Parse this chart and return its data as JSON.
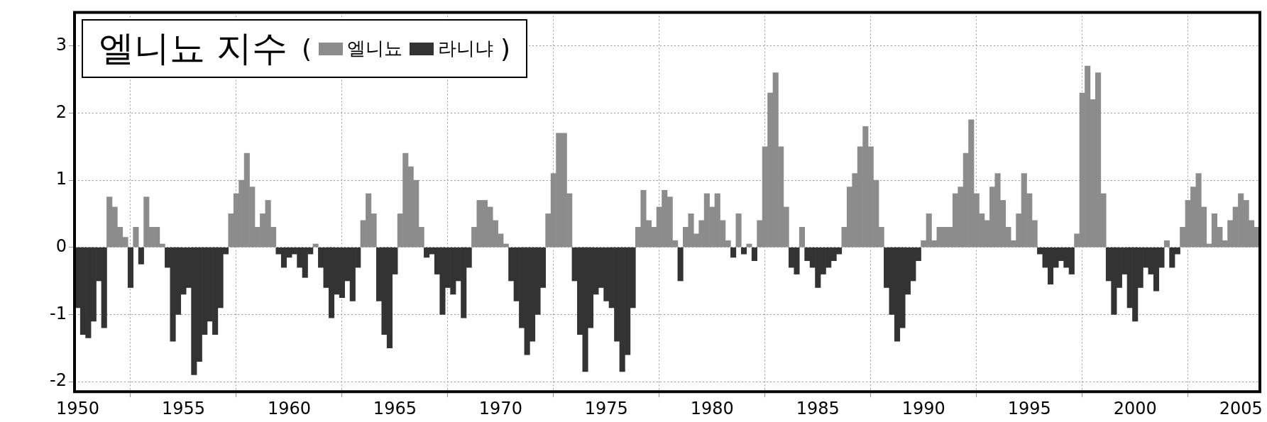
{
  "chart_data": {
    "type": "bar",
    "title": "엘니뇨 지수",
    "legend": "top left",
    "annotations": [
      "(",
      ")"
    ],
    "grid": true,
    "xlim": [
      1949.85,
      2005.9
    ],
    "xticks": [
      1950,
      1955,
      1960,
      1965,
      1970,
      1975,
      1980,
      1985,
      1990,
      1995,
      2000,
      2005
    ],
    "ylim": [
      -2.15,
      3.5
    ],
    "yticks": [
      -2,
      -1,
      0,
      1,
      2,
      3
    ],
    "x": [
      1950,
      1950.25,
      1950.5,
      1950.75,
      1951,
      1951.25,
      1951.5,
      1951.75,
      1952,
      1952.25,
      1952.5,
      1952.75,
      1953,
      1953.25,
      1953.5,
      1953.75,
      1954,
      1954.25,
      1954.5,
      1954.75,
      1955,
      1955.25,
      1955.5,
      1955.75,
      1956,
      1956.25,
      1956.5,
      1956.75,
      1957,
      1957.25,
      1957.5,
      1957.75,
      1958,
      1958.25,
      1958.5,
      1958.75,
      1959,
      1959.25,
      1959.5,
      1959.75,
      1960,
      1960.25,
      1960.5,
      1960.75,
      1961,
      1961.25,
      1961.5,
      1961.75,
      1962,
      1962.25,
      1962.5,
      1962.75,
      1963,
      1963.25,
      1963.5,
      1963.75,
      1964,
      1964.25,
      1964.5,
      1964.75,
      1965,
      1965.25,
      1965.5,
      1965.75,
      1966,
      1966.25,
      1966.5,
      1966.75,
      1967,
      1967.25,
      1967.5,
      1967.75,
      1968,
      1968.25,
      1968.5,
      1968.75,
      1969,
      1969.25,
      1969.5,
      1969.75,
      1970,
      1970.25,
      1970.5,
      1970.75,
      1971,
      1971.25,
      1971.5,
      1971.75,
      1972,
      1972.25,
      1972.5,
      1972.75,
      1973,
      1973.25,
      1973.5,
      1973.75,
      1974,
      1974.25,
      1974.5,
      1974.75,
      1975,
      1975.25,
      1975.5,
      1975.75,
      1976,
      1976.25,
      1976.5,
      1976.75,
      1977,
      1977.25,
      1977.5,
      1977.75,
      1978,
      1978.25,
      1978.5,
      1978.75,
      1979,
      1979.25,
      1979.5,
      1979.75,
      1980,
      1980.25,
      1980.5,
      1980.75,
      1981,
      1981.25,
      1981.5,
      1981.75,
      1982,
      1982.25,
      1982.5,
      1982.75,
      1983,
      1983.25,
      1983.5,
      1983.75,
      1984,
      1984.25,
      1984.5,
      1984.75,
      1985,
      1985.25,
      1985.5,
      1985.75,
      1986,
      1986.25,
      1986.5,
      1986.75,
      1987,
      1987.25,
      1987.5,
      1987.75,
      1988,
      1988.25,
      1988.5,
      1988.75,
      1989,
      1989.25,
      1989.5,
      1989.75,
      1990,
      1990.25,
      1990.5,
      1990.75,
      1991,
      1991.25,
      1991.5,
      1991.75,
      1992,
      1992.25,
      1992.5,
      1992.75,
      1993,
      1993.25,
      1993.5,
      1993.75,
      1994,
      1994.25,
      1994.5,
      1994.75,
      1995,
      1995.25,
      1995.5,
      1995.75,
      1996,
      1996.25,
      1996.5,
      1996.75,
      1997,
      1997.25,
      1997.5,
      1997.75,
      1998,
      1998.25,
      1998.5,
      1998.75,
      1999,
      1999.25,
      1999.5,
      1999.75,
      2000,
      2000.25,
      2000.5,
      2000.75,
      2001,
      2001.25,
      2001.5,
      2001.75,
      2002,
      2002.25,
      2002.5,
      2002.75,
      2003,
      2003.25,
      2003.5,
      2003.75,
      2004,
      2004.25,
      2004.5,
      2004.75,
      2005,
      2005.25,
      2005.5,
      2005.75
    ],
    "series": [
      {
        "name": "엘니뇨",
        "color": "#8c8c8c",
        "values": [
          null,
          null,
          null,
          null,
          null,
          null,
          0.75,
          0.6,
          0.3,
          0.15,
          null,
          0.3,
          null,
          0.75,
          0.3,
          0.3,
          0.05,
          null,
          null,
          null,
          null,
          null,
          null,
          null,
          null,
          null,
          null,
          null,
          null,
          0.5,
          0.8,
          1.0,
          1.4,
          0.9,
          0.3,
          0.5,
          0.7,
          0.3,
          null,
          null,
          null,
          null,
          null,
          null,
          null,
          0.05,
          null,
          null,
          null,
          null,
          null,
          null,
          null,
          null,
          0.4,
          0.8,
          0.5,
          null,
          null,
          null,
          null,
          0.5,
          1.4,
          1.2,
          1.0,
          0.3,
          null,
          null,
          null,
          null,
          null,
          null,
          null,
          null,
          null,
          0.3,
          0.7,
          0.7,
          0.6,
          0.4,
          0.2,
          0.05,
          null,
          null,
          null,
          null,
          null,
          null,
          null,
          0.5,
          1.1,
          1.7,
          1.7,
          0.8,
          null,
          null,
          null,
          null,
          null,
          null,
          null,
          null,
          null,
          null,
          null,
          null,
          0.3,
          0.85,
          0.4,
          0.3,
          0.6,
          0.85,
          0.75,
          0.1,
          null,
          0.3,
          0.5,
          0.2,
          0.4,
          0.8,
          0.6,
          0.8,
          0.4,
          0.1,
          null,
          0.5,
          null,
          0.05,
          null,
          0.4,
          1.5,
          2.3,
          2.6,
          1.5,
          0.6,
          null,
          null,
          0.3,
          null,
          null,
          null,
          null,
          null,
          null,
          null,
          0.3,
          0.9,
          1.1,
          1.5,
          1.8,
          1.5,
          1.0,
          0.3,
          null,
          null,
          null,
          null,
          null,
          null,
          null,
          0.1,
          0.5,
          0.1,
          0.3,
          0.3,
          0.3,
          0.8,
          0.9,
          1.4,
          1.9,
          0.8,
          0.5,
          0.4,
          0.9,
          1.1,
          0.7,
          0.3,
          0.1,
          0.5,
          1.1,
          0.8,
          0.4,
          null,
          null,
          null,
          null,
          null,
          null,
          null,
          0.2,
          2.3,
          2.7,
          2.2,
          2.6,
          0.8,
          null,
          null,
          null,
          null,
          null,
          null,
          null,
          null,
          null,
          null,
          null,
          0.1,
          null,
          null,
          0.3,
          0.7,
          0.9,
          1.1,
          0.6,
          0.05,
          0.5,
          0.3,
          0.1,
          0.4,
          0.6,
          0.8,
          0.7,
          0.4,
          0.3
        ]
      },
      {
        "name": "라니냐",
        "color": "#333333",
        "values": [
          -0.9,
          -1.3,
          -1.35,
          -1.1,
          -0.5,
          -1.2,
          null,
          null,
          null,
          null,
          -0.6,
          null,
          -0.25,
          null,
          null,
          null,
          null,
          -0.3,
          -1.4,
          -1.0,
          -0.7,
          -0.6,
          -1.9,
          -1.7,
          -1.3,
          -1.1,
          -1.3,
          -0.9,
          -0.1,
          null,
          null,
          null,
          null,
          null,
          null,
          null,
          null,
          null,
          -0.1,
          -0.3,
          -0.15,
          -0.1,
          -0.3,
          -0.45,
          -0.1,
          null,
          -0.3,
          -0.6,
          -1.05,
          -0.7,
          -0.75,
          -0.5,
          -0.8,
          -0.3,
          null,
          null,
          null,
          -0.8,
          -1.3,
          -1.5,
          -0.4,
          null,
          null,
          null,
          null,
          null,
          -0.15,
          -0.1,
          -0.4,
          -1.0,
          -0.6,
          -0.7,
          -0.5,
          -1.05,
          -0.3,
          null,
          null,
          null,
          null,
          null,
          null,
          null,
          -0.5,
          -0.8,
          -1.2,
          -1.6,
          -1.4,
          -1.0,
          -0.6,
          null,
          null,
          null,
          null,
          null,
          -0.5,
          -1.3,
          -1.85,
          -1.2,
          -0.7,
          -0.6,
          -0.8,
          -0.9,
          -1.4,
          -1.85,
          -1.6,
          -0.9,
          null,
          null,
          null,
          null,
          null,
          null,
          null,
          null,
          -0.5,
          null,
          null,
          null,
          null,
          null,
          null,
          null,
          null,
          null,
          -0.15,
          null,
          -0.1,
          null,
          -0.2,
          null,
          null,
          null,
          null,
          null,
          null,
          -0.3,
          -0.4,
          null,
          -0.2,
          -0.3,
          -0.6,
          -0.4,
          -0.3,
          -0.2,
          -0.1,
          null,
          null,
          null,
          null,
          null,
          null,
          null,
          null,
          -0.6,
          -1.0,
          -1.4,
          -1.2,
          -0.7,
          -0.5,
          -0.2,
          null,
          null,
          null,
          null,
          null,
          null,
          null,
          null,
          null,
          null,
          null,
          null,
          null,
          null,
          null,
          null,
          null,
          null,
          null,
          null,
          null,
          null,
          -0.1,
          -0.3,
          -0.55,
          -0.3,
          -0.2,
          -0.3,
          -0.4,
          null,
          null,
          null,
          null,
          null,
          null,
          -0.5,
          -1.0,
          -0.6,
          -0.4,
          -0.9,
          -1.1,
          -0.6,
          -0.3,
          -0.4,
          -0.65,
          -0.3,
          null,
          -0.3,
          -0.1,
          null,
          null,
          null,
          null,
          null,
          null,
          null,
          null,
          null,
          null,
          null,
          null,
          null,
          null,
          null
        ]
      }
    ]
  }
}
